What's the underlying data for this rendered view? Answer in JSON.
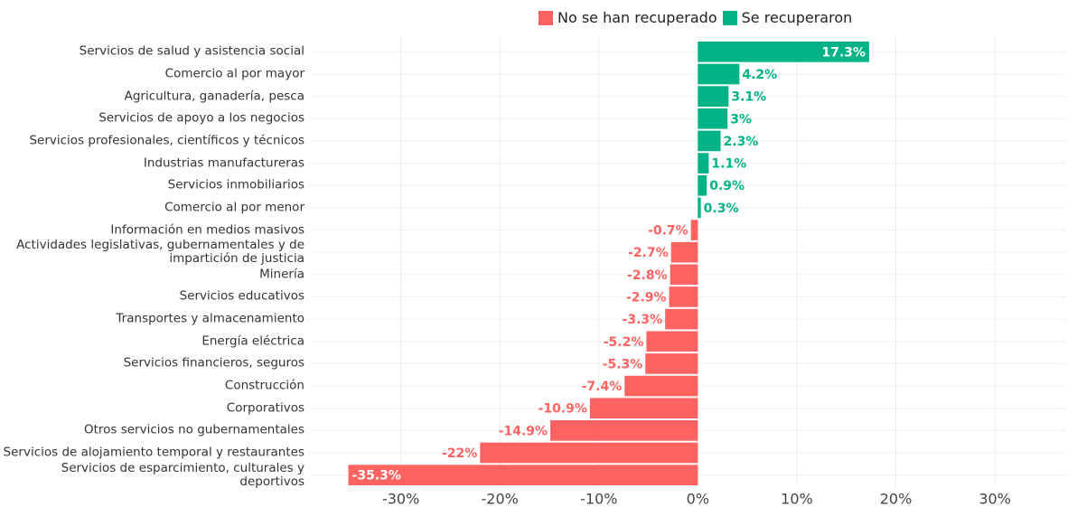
{
  "chart_data": {
    "type": "hbar",
    "categories": [
      "Servicios de salud y asistencia social",
      "Comercio al por mayor",
      "Agricultura, ganadería, pesca",
      "Servicios de apoyo a los negocios",
      "Servicios profesionales, científicos y técnicos",
      "Industrias manufactureras",
      "Servicios inmobiliarios",
      "Comercio al por menor",
      "Información en medios masivos",
      "Actividades legislativas, gubernamentales y de impartición de justicia",
      "Minería",
      "Servicios educativos",
      "Transportes y almacenamiento",
      "Energía eléctrica",
      "Servicios financieros, seguros",
      "Construcción",
      "Corporativos",
      "Otros servicios no gubernamentales",
      "Servicios de alojamiento temporal y restaurantes",
      "Servicios de esparcimiento, culturales y deportivos"
    ],
    "series": [
      {
        "name": "No se han recuperado",
        "color": "#ff6361",
        "values": [
          null,
          null,
          null,
          null,
          null,
          null,
          null,
          null,
          -0.7,
          -2.7,
          -2.8,
          -2.9,
          -3.3,
          -5.2,
          -5.3,
          -7.4,
          -10.9,
          -14.9,
          -22,
          -35.3
        ],
        "value_labels": [
          null,
          null,
          null,
          null,
          null,
          null,
          null,
          null,
          "-0.7%",
          "-2.7%",
          "-2.8%",
          "-2.9%",
          "-3.3%",
          "-5.2%",
          "-5.3%",
          "-7.4%",
          "-10.9%",
          "-14.9%",
          "-22%",
          "-35.3%"
        ]
      },
      {
        "name": "Se recuperaron",
        "color": "#00b386",
        "values": [
          17.3,
          4.2,
          3.1,
          3,
          2.3,
          1.1,
          0.9,
          0.3,
          null,
          null,
          null,
          null,
          null,
          null,
          null,
          null,
          null,
          null,
          null,
          null
        ],
        "value_labels": [
          "17.3%",
          "4.2%",
          "3.1%",
          "3%",
          "2.3%",
          "1.1%",
          "0.9%",
          "0.3%",
          null,
          null,
          null,
          null,
          null,
          null,
          null,
          null,
          null,
          null,
          null,
          null
        ]
      }
    ],
    "xlim": [
      -39,
      37.2
    ],
    "xticks": [
      {
        "value": -30,
        "label": "-30%"
      },
      {
        "value": -20,
        "label": "-20%"
      },
      {
        "value": -10,
        "label": "-10%"
      },
      {
        "value": 0,
        "label": "0%"
      },
      {
        "value": 10,
        "label": "10%"
      },
      {
        "value": 20,
        "label": "20%"
      },
      {
        "value": 30,
        "label": "30%"
      }
    ],
    "grid": true,
    "legend": "top"
  }
}
